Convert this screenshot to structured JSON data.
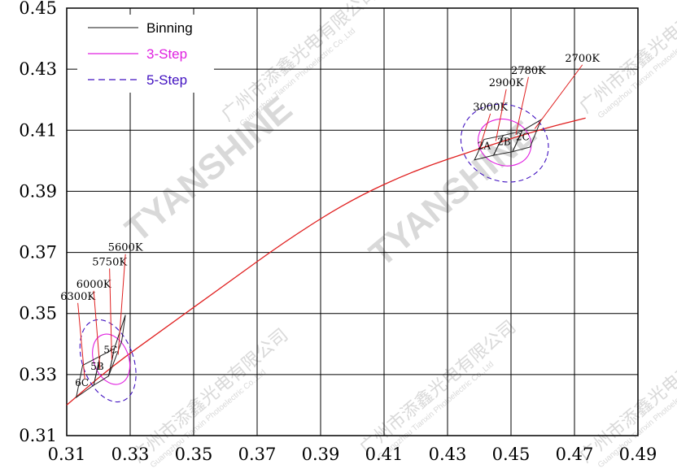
{
  "chart_data": {
    "type": "scatter",
    "title": "",
    "xlabel": "",
    "ylabel": "",
    "xlim": [
      0.31,
      0.49
    ],
    "ylim": [
      0.31,
      0.45
    ],
    "x_ticks": [
      "0.31",
      "0.33",
      "0.35",
      "0.37",
      "0.39",
      "0.41",
      "0.43",
      "0.45",
      "0.47",
      "0.49"
    ],
    "y_ticks": [
      "0.45",
      "0.43",
      "0.41",
      "0.39",
      "0.37",
      "0.35",
      "0.33",
      "0.31"
    ],
    "grid": true,
    "legend": {
      "placement": "top-left",
      "entries": [
        {
          "label": "Binning",
          "color": "#444444",
          "style": "solid"
        },
        {
          "label": "3-Step",
          "color": "#e020e0",
          "style": "solid"
        },
        {
          "label": "5-Step",
          "color": "#4010c0",
          "style": "dashed"
        }
      ]
    },
    "planckian_locus": {
      "color": "#e02020",
      "points": [
        [
          0.31,
          0.32
        ],
        [
          0.324,
          0.3325
        ],
        [
          0.34,
          0.3445
        ],
        [
          0.36,
          0.3595
        ],
        [
          0.38,
          0.3745
        ],
        [
          0.4,
          0.3875
        ],
        [
          0.42,
          0.397
        ],
        [
          0.44,
          0.404
        ],
        [
          0.46,
          0.4105
        ],
        [
          0.4735,
          0.414
        ]
      ]
    },
    "cct_labels": [
      {
        "label": "6300K",
        "tx": 0.3135,
        "ty": 0.3545,
        "ax": 0.3157,
        "ay": 0.3285
      },
      {
        "label": "6000K",
        "tx": 0.3185,
        "ty": 0.3585,
        "ax": 0.3205,
        "ay": 0.3318
      },
      {
        "label": "5750K",
        "tx": 0.3235,
        "ty": 0.3658,
        "ax": 0.3242,
        "ay": 0.3348
      },
      {
        "label": "5600K",
        "tx": 0.3285,
        "ty": 0.3705,
        "ax": 0.3262,
        "ay": 0.3365
      },
      {
        "label": "3000K",
        "tx": 0.4435,
        "ty": 0.4165,
        "ax": 0.4402,
        "ay": 0.4045
      },
      {
        "label": "2900K",
        "tx": 0.4485,
        "ty": 0.4245,
        "ax": 0.4452,
        "ay": 0.4065
      },
      {
        "label": "2780K",
        "tx": 0.4555,
        "ty": 0.4285,
        "ax": 0.4515,
        "ay": 0.4085
      },
      {
        "label": "2700K",
        "tx": 0.4725,
        "ty": 0.4325,
        "ax": 0.4575,
        "ay": 0.4105
      }
    ],
    "bins": [
      {
        "label": "6C",
        "corners": [
          [
            0.315,
            0.333
          ],
          [
            0.3205,
            0.336
          ],
          [
            0.3185,
            0.3265
          ],
          [
            0.313,
            0.3225
          ]
        ]
      },
      {
        "label": "5B",
        "corners": [
          [
            0.3205,
            0.336
          ],
          [
            0.325,
            0.3385
          ],
          [
            0.3232,
            0.3295
          ],
          [
            0.3185,
            0.3265
          ]
        ]
      },
      {
        "label": "5C",
        "corners": [
          [
            0.325,
            0.3385
          ],
          [
            0.3285,
            0.3495
          ],
          [
            0.3273,
            0.3408
          ],
          [
            0.3232,
            0.3295
          ]
        ]
      },
      {
        "label": "2A",
        "corners": [
          [
            0.4385,
            0.4003
          ],
          [
            0.4415,
            0.407
          ],
          [
            0.4475,
            0.4083
          ],
          [
            0.4445,
            0.4018
          ]
        ]
      },
      {
        "label": "2B",
        "corners": [
          [
            0.4445,
            0.4018
          ],
          [
            0.4475,
            0.4083
          ],
          [
            0.4535,
            0.4098
          ],
          [
            0.4505,
            0.403
          ]
        ]
      },
      {
        "label": "2C",
        "corners": [
          [
            0.4505,
            0.403
          ],
          [
            0.4535,
            0.4098
          ],
          [
            0.4595,
            0.4135
          ],
          [
            0.456,
            0.4045
          ]
        ]
      }
    ],
    "bin_label_positions": [
      {
        "label": "6C",
        "x": 0.3148,
        "y": 0.3262
      },
      {
        "label": "5B",
        "x": 0.3196,
        "y": 0.3315
      },
      {
        "label": "5C",
        "x": 0.3238,
        "y": 0.337
      },
      {
        "label": "2A",
        "x": 0.4415,
        "y": 0.4038
      },
      {
        "label": "2B",
        "x": 0.4478,
        "y": 0.4052
      },
      {
        "label": "2C",
        "x": 0.4537,
        "y": 0.4068
      }
    ],
    "ellipses": [
      {
        "series": "3-Step",
        "cx": 0.324,
        "cy": 0.335,
        "rx": 0.0055,
        "ry": 0.0085,
        "angle": -20
      },
      {
        "series": "5-Step",
        "cx": 0.323,
        "cy": 0.3345,
        "rx": 0.008,
        "ry": 0.014,
        "angle": -20
      },
      {
        "series": "3-Step",
        "cx": 0.448,
        "cy": 0.406,
        "rx": 0.0085,
        "ry": 0.0075,
        "angle": 20
      },
      {
        "series": "5-Step",
        "cx": 0.448,
        "cy": 0.4058,
        "rx": 0.014,
        "ry": 0.0125,
        "angle": 20
      }
    ]
  },
  "watermark": {
    "brand": "TYANSHINE",
    "company": "广州市添鑫光电有限公司",
    "company_en": "Guangzhou Tianxin Photoelectric Co.,Ltd"
  }
}
